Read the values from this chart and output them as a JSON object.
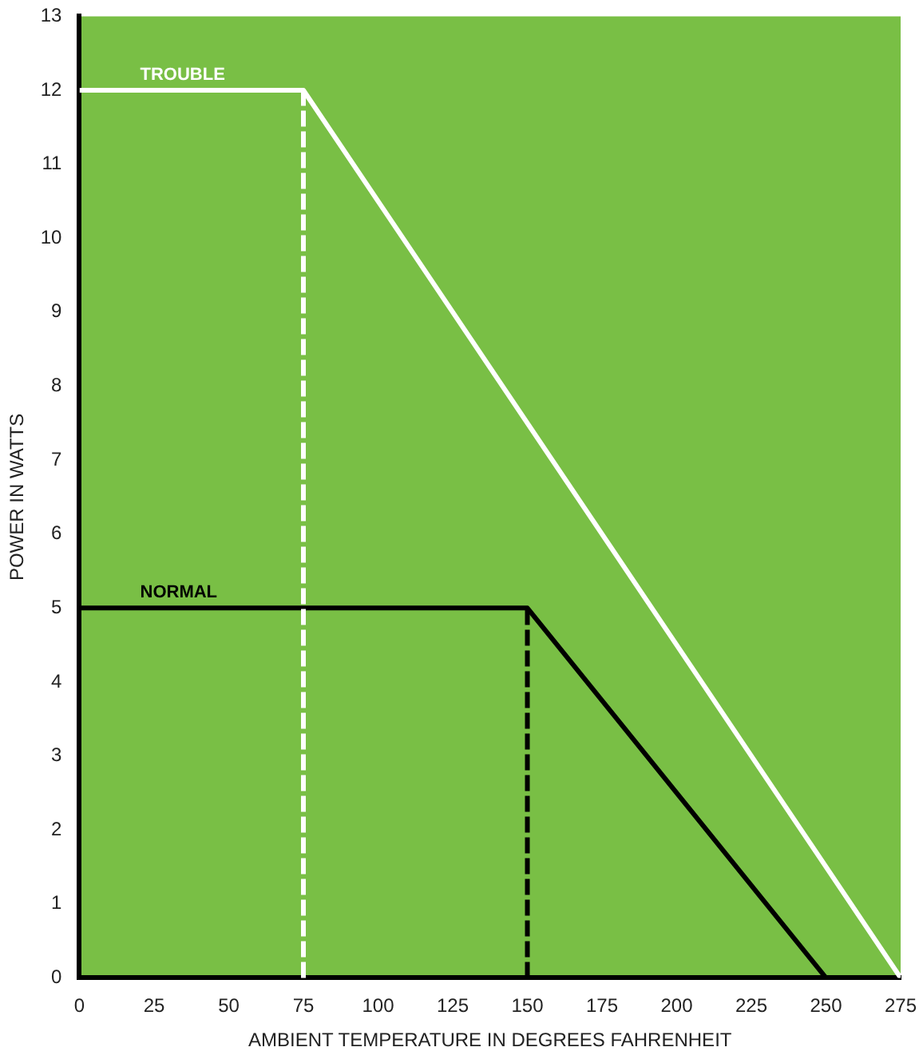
{
  "chart_data": {
    "type": "line",
    "xlabel": "AMBIENT TEMPERATURE IN DEGREES FAHRENHEIT",
    "ylabel": "POWER IN WATTS",
    "xlim": [
      0,
      275
    ],
    "xticks": [
      0,
      25,
      50,
      75,
      100,
      125,
      150,
      175,
      200,
      225,
      250,
      275
    ],
    "ylim": [
      0,
      13
    ],
    "yticks": [
      0,
      1,
      2,
      3,
      4,
      5,
      6,
      7,
      8,
      9,
      10,
      11,
      12,
      13
    ],
    "grid": false,
    "legend": false,
    "marker": "none",
    "series": [
      {
        "name": "TROUBLE",
        "color": "#ffffff",
        "x": [
          0,
          75,
          275
        ],
        "values": [
          12,
          12,
          0
        ]
      },
      {
        "name": "NORMAL",
        "color": "#000000",
        "x": [
          0,
          150,
          250
        ],
        "values": [
          5,
          5,
          0
        ]
      }
    ],
    "ref_lines": [
      {
        "axis": "x",
        "value": 75,
        "color": "#ffffff",
        "line_style": "dashed"
      },
      {
        "axis": "x",
        "value": 150,
        "color": "#000000",
        "line_style": "dashed"
      }
    ]
  }
}
